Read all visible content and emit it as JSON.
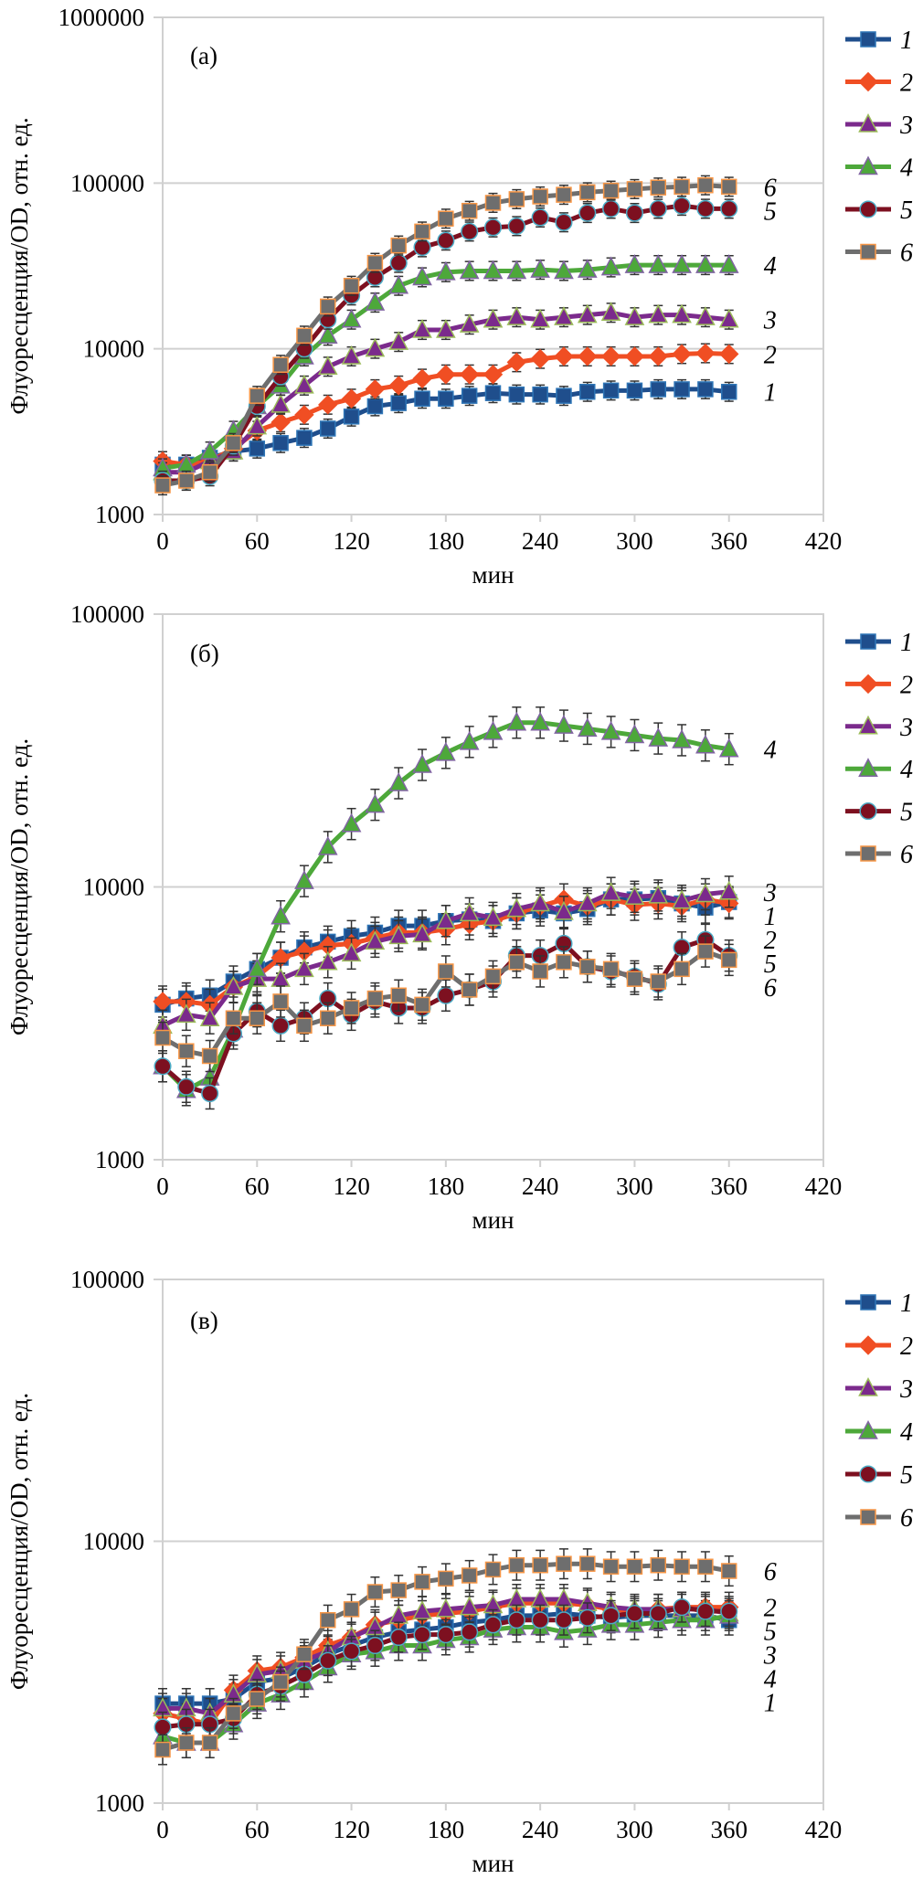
{
  "chart_data": [
    {
      "type": "line",
      "panel_label": "(a)",
      "title": "",
      "xlabel": "мин",
      "ylabel": "Флуоресценция/OD, отн. ед.",
      "yscale": "log",
      "ylim": [
        1000,
        1000000
      ],
      "yticks": [
        "1000",
        "10000",
        "100000",
        "1000000"
      ],
      "xlim": [
        0,
        420
      ],
      "xticks": [
        "0",
        "60",
        "120",
        "180",
        "240",
        "300",
        "360",
        "420"
      ],
      "grid": "horizontal",
      "legend_position": "right",
      "x": [
        0,
        15,
        30,
        45,
        60,
        75,
        90,
        105,
        120,
        135,
        150,
        165,
        180,
        195,
        210,
        225,
        240,
        255,
        270,
        285,
        300,
        315,
        330,
        345,
        360
      ],
      "series": [
        {
          "name": "1",
          "color": "#1f4e8c",
          "marker": "square",
          "end_label": "1",
          "values": [
            2000,
            2000,
            2200,
            2400,
            2500,
            2700,
            2900,
            3300,
            3900,
            4500,
            4700,
            5000,
            5000,
            5200,
            5400,
            5300,
            5300,
            5200,
            5500,
            5600,
            5600,
            5700,
            5700,
            5700,
            5500
          ]
        },
        {
          "name": "2",
          "color": "#f04e23",
          "marker": "diamond",
          "end_label": "2",
          "values": [
            2100,
            2000,
            2100,
            2500,
            3200,
            3600,
            4000,
            4600,
            5000,
            5700,
            6000,
            6600,
            7000,
            7000,
            7000,
            8300,
            8700,
            9000,
            9000,
            9000,
            9000,
            9000,
            9300,
            9400,
            9300
          ]
        },
        {
          "name": "3",
          "color": "#7b2a8c",
          "marker": "triangle",
          "end_label": "3",
          "values": [
            1800,
            1800,
            2100,
            2400,
            3400,
            4600,
            6000,
            7800,
            9000,
            10000,
            11000,
            13000,
            13000,
            14000,
            15000,
            15500,
            15000,
            15500,
            16000,
            16500,
            15500,
            16000,
            16000,
            15500,
            15000
          ]
        },
        {
          "name": "4",
          "color": "#4da83a",
          "marker": "triangle",
          "end_label": "4",
          "values": [
            1900,
            2000,
            2400,
            3200,
            4500,
            6000,
            9000,
            12000,
            15000,
            19000,
            24000,
            27000,
            29000,
            29500,
            29500,
            29500,
            30000,
            29500,
            30000,
            31000,
            32000,
            32000,
            32000,
            32000,
            32000
          ]
        },
        {
          "name": "5",
          "color": "#7d1020",
          "marker": "circle",
          "end_label": "5",
          "values": [
            1600,
            1600,
            1700,
            2600,
            4500,
            6800,
            10000,
            15000,
            21000,
            27000,
            33000,
            41000,
            45000,
            51000,
            54000,
            55000,
            62000,
            58000,
            66000,
            70000,
            66000,
            70000,
            73000,
            70000,
            70000
          ]
        },
        {
          "name": "6",
          "color": "#6e6e6e",
          "marker": "square-orange-edge",
          "end_label": "6",
          "values": [
            1500,
            1600,
            1800,
            2700,
            5200,
            8000,
            12000,
            18000,
            24000,
            33000,
            42000,
            51000,
            61000,
            68000,
            76000,
            80000,
            83000,
            85000,
            88000,
            90000,
            92000,
            94000,
            95000,
            97000,
            95000
          ]
        }
      ]
    },
    {
      "type": "line",
      "panel_label": "(б)",
      "title": "",
      "xlabel": "мин",
      "ylabel": "Флуоресценция/OD, отн. ед.",
      "yscale": "log",
      "ylim": [
        1000,
        100000
      ],
      "yticks": [
        "1000",
        "10000",
        "100000"
      ],
      "xlim": [
        0,
        420
      ],
      "xticks": [
        "0",
        "60",
        "120",
        "180",
        "240",
        "300",
        "360",
        "420"
      ],
      "grid": "horizontal",
      "legend_position": "right",
      "x": [
        0,
        15,
        30,
        45,
        60,
        75,
        90,
        105,
        120,
        135,
        150,
        165,
        180,
        195,
        210,
        225,
        240,
        255,
        270,
        285,
        300,
        315,
        330,
        345,
        360
      ],
      "series": [
        {
          "name": "1",
          "color": "#1f4e8c",
          "marker": "square",
          "end_label": "1",
          "values": [
            3700,
            3900,
            4000,
            4500,
            5000,
            5500,
            6000,
            6300,
            6600,
            6800,
            7200,
            7200,
            7500,
            7600,
            7500,
            8000,
            8200,
            8000,
            8300,
            9000,
            9000,
            9100,
            8700,
            8400,
            8800
          ]
        },
        {
          "name": "2",
          "color": "#f04e23",
          "marker": "diamond",
          "end_label": "2",
          "values": [
            3800,
            3800,
            3700,
            4300,
            4700,
            5500,
            5800,
            6100,
            6200,
            6500,
            6800,
            6800,
            7000,
            7300,
            7500,
            8000,
            8500,
            9000,
            8500,
            9000,
            8600,
            8700,
            8500,
            9000,
            8700
          ]
        },
        {
          "name": "3",
          "color": "#7b2a8c",
          "marker": "triangle",
          "end_label": "3",
          "values": [
            3100,
            3400,
            3300,
            4300,
            4600,
            4600,
            5000,
            5300,
            5700,
            6300,
            6600,
            6700,
            7500,
            8000,
            7700,
            8300,
            8700,
            8100,
            8700,
            9500,
            9200,
            9300,
            8900,
            9400,
            9600
          ]
        },
        {
          "name": "4",
          "color": "#4da83a",
          "marker": "triangle",
          "end_label": "4",
          "values": [
            2200,
            1800,
            2000,
            3000,
            5000,
            7800,
            10500,
            14000,
            17000,
            20000,
            24000,
            28000,
            31000,
            34000,
            37000,
            40000,
            40000,
            39000,
            38000,
            37000,
            36000,
            35000,
            34500,
            33000,
            32000
          ]
        },
        {
          "name": "5",
          "color": "#7d1020",
          "marker": "circle",
          "end_label": "5",
          "values": [
            2200,
            1850,
            1750,
            2900,
            3500,
            3100,
            3300,
            3900,
            3400,
            3800,
            3600,
            3600,
            4000,
            4200,
            4500,
            5600,
            5600,
            6200,
            5100,
            4900,
            4700,
            4400,
            6000,
            6400,
            5600
          ]
        },
        {
          "name": "6",
          "color": "#6e6e6e",
          "marker": "square-orange-edge",
          "end_label": "6",
          "values": [
            2800,
            2500,
            2400,
            3300,
            3300,
            3800,
            3100,
            3300,
            3600,
            3900,
            4000,
            3700,
            4900,
            4200,
            4700,
            5300,
            4900,
            5300,
            5100,
            5000,
            4600,
            4500,
            5000,
            5800,
            5400
          ]
        }
      ]
    },
    {
      "type": "line",
      "panel_label": "(в)",
      "title": "",
      "xlabel": "мин",
      "ylabel": "Флуоресценция/OD, отн. ед.",
      "yscale": "log",
      "ylim": [
        1000,
        100000
      ],
      "yticks": [
        "1000",
        "10000",
        "100000"
      ],
      "xlim": [
        0,
        420
      ],
      "xticks": [
        "0",
        "60",
        "120",
        "180",
        "240",
        "300",
        "360",
        "420"
      ],
      "grid": "horizontal",
      "legend_position": "right",
      "x": [
        0,
        15,
        30,
        45,
        60,
        75,
        90,
        105,
        120,
        135,
        150,
        165,
        180,
        195,
        210,
        225,
        240,
        255,
        270,
        285,
        300,
        315,
        330,
        345,
        360
      ],
      "series": [
        {
          "name": "1",
          "color": "#1f4e8c",
          "marker": "square",
          "end_label": "1",
          "values": [
            2400,
            2400,
            2400,
            2500,
            2900,
            3000,
            3300,
            3700,
            4000,
            4300,
            4500,
            4600,
            4700,
            4900,
            5000,
            5200,
            5200,
            5300,
            5200,
            5100,
            5200,
            5200,
            5200,
            5200,
            5000
          ]
        },
        {
          "name": "2",
          "color": "#f04e23",
          "marker": "diamond",
          "end_label": "2",
          "values": [
            2200,
            2100,
            2000,
            2700,
            3200,
            3300,
            3600,
            4000,
            4300,
            4800,
            5000,
            5200,
            5300,
            5400,
            5600,
            5800,
            5800,
            5800,
            5700,
            5500,
            5400,
            5500,
            5600,
            5600,
            5600
          ]
        },
        {
          "name": "3",
          "color": "#7b2a8c",
          "marker": "triangle",
          "end_label": "3",
          "values": [
            2300,
            2300,
            2200,
            2600,
            3100,
            3200,
            3500,
            3800,
            4300,
            4700,
            5200,
            5400,
            5500,
            5600,
            5700,
            6000,
            6000,
            6000,
            5800,
            5600,
            5500,
            5500,
            5500,
            5500,
            5300
          ]
        },
        {
          "name": "4",
          "color": "#4da83a",
          "marker": "triangle",
          "end_label": "4",
          "values": [
            1800,
            1700,
            1700,
            2000,
            2400,
            2600,
            2900,
            3300,
            3700,
            3800,
            4000,
            4000,
            4200,
            4300,
            4600,
            4700,
            4700,
            4500,
            4600,
            4800,
            4800,
            4900,
            5000,
            5000,
            5200
          ]
        },
        {
          "name": "5",
          "color": "#7d1020",
          "marker": "circle",
          "end_label": "5",
          "values": [
            1950,
            2000,
            2000,
            2100,
            2600,
            2800,
            3100,
            3500,
            3800,
            4000,
            4300,
            4400,
            4400,
            4500,
            4800,
            5000,
            5000,
            5000,
            5100,
            5200,
            5300,
            5300,
            5600,
            5400,
            5400
          ]
        },
        {
          "name": "6",
          "color": "#6e6e6e",
          "marker": "square-orange-edge",
          "end_label": "6",
          "values": [
            1600,
            1700,
            1700,
            2200,
            2500,
            2900,
            3700,
            5000,
            5500,
            6400,
            6500,
            7000,
            7200,
            7400,
            7800,
            8100,
            8100,
            8200,
            8200,
            8000,
            8000,
            8100,
            8000,
            8000,
            7700
          ]
        }
      ]
    }
  ]
}
